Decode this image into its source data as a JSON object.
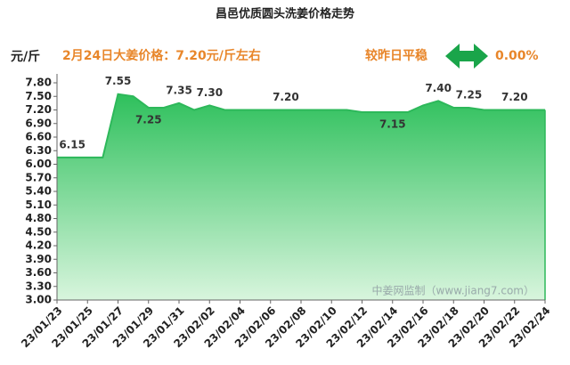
{
  "chart_data": {
    "type": "area",
    "title": "昌邑优质圆头洗姜价格走势",
    "y_label": "元/斤",
    "price_note": "2月24日大姜价格：7.20元/斤左右",
    "change_label": "较昨日平稳",
    "change_value": "0.00%",
    "watermark": "中姜网监制（www.jiang7.com）",
    "categories": [
      "23/01/23",
      null,
      "23/01/25",
      null,
      "23/01/27",
      null,
      "23/01/29",
      null,
      "23/01/31",
      null,
      "23/02/02",
      null,
      "23/02/04",
      null,
      "23/02/06",
      null,
      "23/02/08",
      null,
      "23/02/10",
      null,
      "23/02/12",
      null,
      "23/02/14",
      null,
      "23/02/16",
      null,
      "23/02/18",
      null,
      "23/02/20",
      null,
      "23/02/22",
      null,
      "23/02/24"
    ],
    "values": [
      6.15,
      6.15,
      6.15,
      6.15,
      7.55,
      7.5,
      7.25,
      7.25,
      7.35,
      7.2,
      7.3,
      7.2,
      7.2,
      7.2,
      7.2,
      7.2,
      7.2,
      7.2,
      7.2,
      7.2,
      7.15,
      7.15,
      7.15,
      7.15,
      7.3,
      7.4,
      7.25,
      7.25,
      7.2,
      7.2,
      7.2,
      7.2,
      7.2
    ],
    "value_labels": [
      null,
      "6.15",
      null,
      null,
      "7.55",
      null,
      "7.25",
      null,
      "7.35",
      null,
      "7.30",
      null,
      null,
      null,
      null,
      "7.20",
      null,
      null,
      null,
      null,
      null,
      null,
      "7.15",
      null,
      null,
      "7.40",
      null,
      "7.25",
      null,
      null,
      "7.20",
      null,
      null
    ],
    "color": "#2db85a",
    "ylim": [
      3.0,
      7.8
    ],
    "yticks": [
      {
        "value": 3.0,
        "label": "3.00"
      },
      {
        "value": 3.3,
        "label": "3.30"
      },
      {
        "value": 3.6,
        "label": "3.60"
      },
      {
        "value": 3.9,
        "label": "3.90"
      },
      {
        "value": 4.2,
        "label": "4.20"
      },
      {
        "value": 4.5,
        "label": "4.50"
      },
      {
        "value": 4.8,
        "label": "4.80"
      },
      {
        "value": 5.1,
        "label": "5.10"
      },
      {
        "value": 5.4,
        "label": "5.40"
      },
      {
        "value": 5.7,
        "label": "5.70"
      },
      {
        "value": 6.0,
        "label": "6.00"
      },
      {
        "value": 6.3,
        "label": "6.30"
      },
      {
        "value": 6.6,
        "label": "6.60"
      },
      {
        "value": 6.9,
        "label": "6.90"
      },
      {
        "value": 7.2,
        "label": "7.20"
      },
      {
        "value": 7.5,
        "label": "7.50"
      },
      {
        "value": 7.8,
        "label": "7.80"
      }
    ],
    "grid": false
  }
}
